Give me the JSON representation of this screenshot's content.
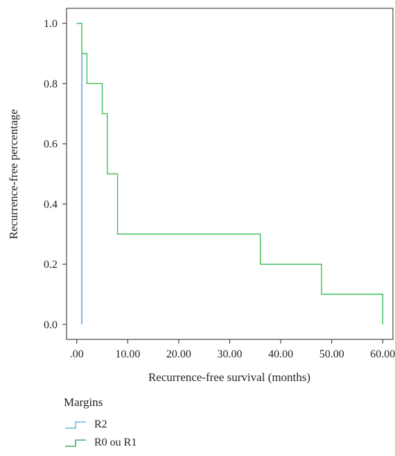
{
  "chart_data": {
    "type": "line",
    "xlabel": "Recurrence-free survival (months)",
    "ylabel": "Recurrence-free percentage",
    "xlim": [
      -2,
      62
    ],
    "ylim": [
      -0.05,
      1.05
    ],
    "x_ticks": [
      0,
      10,
      20,
      30,
      40,
      50,
      60
    ],
    "x_tick_labels": [
      ".00",
      "10.00",
      "20.00",
      "30.00",
      "40.00",
      "50.00",
      "60.00"
    ],
    "y_ticks": [
      0,
      0.2,
      0.4,
      0.6,
      0.8,
      1.0
    ],
    "y_tick_labels": [
      "0.0",
      "0.2",
      "0.4",
      "0.6",
      "0.8",
      "1.0"
    ],
    "grid": false,
    "legend_position": "bottom-left",
    "legend_title": "Margins",
    "series": [
      {
        "name": "R2",
        "color": "#4a8fd8",
        "swatch_color": "#3fb8d0",
        "step_points": [
          [
            1,
            0.9
          ],
          [
            1,
            0.0
          ]
        ]
      },
      {
        "name": "R0 ou R1",
        "color": "#2eb84a",
        "swatch_color": "#1f9a3c",
        "step_points": [
          [
            0,
            1.0
          ],
          [
            1,
            1.0
          ],
          [
            1,
            0.9
          ],
          [
            2,
            0.9
          ],
          [
            2,
            0.8
          ],
          [
            5,
            0.8
          ],
          [
            5,
            0.7
          ],
          [
            6,
            0.7
          ],
          [
            6,
            0.5
          ],
          [
            8,
            0.5
          ],
          [
            8,
            0.3
          ],
          [
            36,
            0.3
          ],
          [
            36,
            0.2
          ],
          [
            48,
            0.2
          ],
          [
            48,
            0.1
          ],
          [
            60,
            0.1
          ],
          [
            60,
            0.0
          ]
        ]
      }
    ]
  }
}
